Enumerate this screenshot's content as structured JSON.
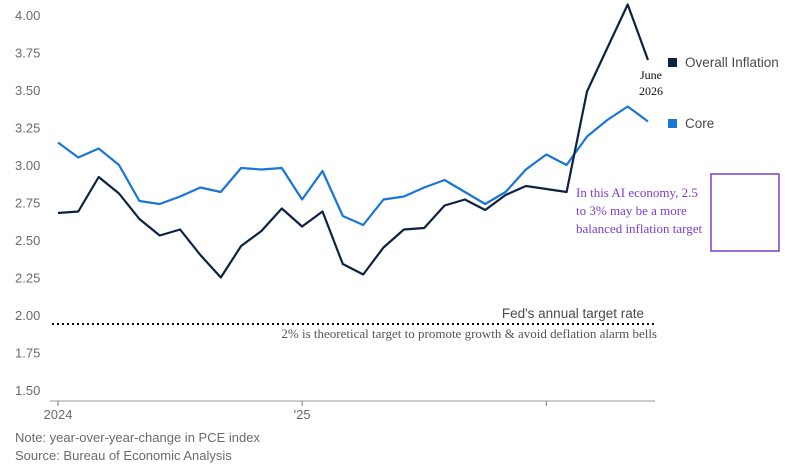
{
  "chart_data": {
    "type": "line",
    "x": [
      "2024-01",
      "2024-02",
      "2024-03",
      "2024-04",
      "2024-05",
      "2024-06",
      "2024-07",
      "2024-08",
      "2024-09",
      "2024-10",
      "2024-11",
      "2024-12",
      "2025-01",
      "2025-02",
      "2025-03",
      "2025-04",
      "2025-05",
      "2025-06",
      "2025-07",
      "2025-08",
      "2025-09",
      "2025-10",
      "2025-11",
      "2025-12",
      "2026-01",
      "2026-02",
      "2026-03",
      "2026-04",
      "2026-05",
      "2026-06"
    ],
    "x_tick_labels": [
      "2024",
      "'25",
      ""
    ],
    "ylim": [
      1.4,
      4.1
    ],
    "y_ticks": [
      "4.00",
      "3.75",
      "3.50",
      "3.25",
      "3.00",
      "2.75",
      "2.50",
      "2.25",
      "2.00",
      "1.75",
      "1.50"
    ],
    "series": [
      {
        "name": "Overall Inflation",
        "color": "#0b2341",
        "values": [
          2.68,
          2.69,
          2.92,
          2.81,
          2.64,
          2.53,
          2.57,
          2.4,
          2.25,
          2.46,
          2.56,
          2.71,
          2.59,
          2.69,
          2.34,
          2.27,
          2.45,
          2.57,
          2.58,
          2.73,
          2.77,
          2.7,
          2.8,
          2.86,
          2.84,
          2.82,
          3.49,
          3.78,
          4.07,
          3.7
        ]
      },
      {
        "name": "Core",
        "color": "#1b75d8",
        "values": [
          3.15,
          3.05,
          3.11,
          3.0,
          2.76,
          2.74,
          2.79,
          2.85,
          2.82,
          2.98,
          2.97,
          2.98,
          2.77,
          2.96,
          2.66,
          2.6,
          2.77,
          2.79,
          2.85,
          2.9,
          2.82,
          2.74,
          2.82,
          2.97,
          3.07,
          3.0,
          3.19,
          3.3,
          3.39,
          3.29
        ]
      }
    ],
    "reference_line": {
      "value": 2.0,
      "label": "Fed's annual target rate",
      "sublabel": "2% is theoretical target to promote growth & avoid deflation alarm bells"
    },
    "end_annotation": "June\n2026",
    "callout_text": "In this AI economy, 2.5 to 3% may be a more balanced inflation target",
    "callout_color": "#7b3fd0",
    "legend_position": "right"
  },
  "notes": {
    "note": "Note: year-over-year-change in PCE index",
    "source": "Source: Bureau of Economic Analysis"
  }
}
